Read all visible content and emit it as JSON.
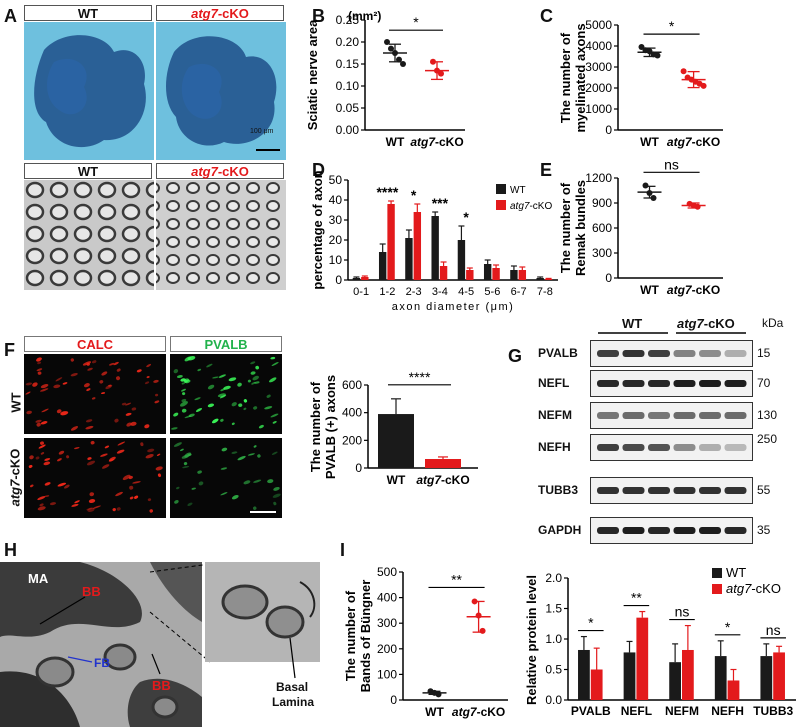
{
  "panels": {
    "A": "A",
    "B": "B",
    "C": "C",
    "D": "D",
    "E": "E",
    "F": "F",
    "G": "G",
    "H": "H",
    "I": "I"
  },
  "panelA": {
    "top_left": "WT",
    "top_right_italic": "atg7",
    "top_right_suffix": "-cKO",
    "bottom_left": "WT",
    "bottom_right_italic": "atg7",
    "bottom_right_suffix": "-cKO",
    "scale_bar": "100 μm"
  },
  "panelF": {
    "col1": "CALC",
    "col2": "PVALB",
    "row1": "WT",
    "row2_italic": "atg7",
    "row2_suffix": "-cKO"
  },
  "panelG": {
    "group_wt": "WT",
    "group_cko_italic": "atg7",
    "group_cko_suffix": "-cKO",
    "kda": "kDa",
    "rows": [
      {
        "protein": "PVALB",
        "mw": "15"
      },
      {
        "protein": "NEFL",
        "mw": "70"
      },
      {
        "protein": "NEFM",
        "mw": "130"
      },
      {
        "protein": "NEFH",
        "mw": "250"
      },
      {
        "protein": "TUBB3",
        "mw": "55"
      },
      {
        "protein": "GAPDH",
        "mw": "35"
      }
    ]
  },
  "panelH": {
    "ma": "MA",
    "bb1": "BB",
    "fb": "FB",
    "bb2": "BB",
    "basal_1": "Basal",
    "basal_2": "Lamina"
  },
  "colors": {
    "wt": "#1a1a1a",
    "cko": "#e31a1c",
    "green": "#22b24c"
  },
  "chart_data": [
    {
      "panel": "B",
      "type": "scatter",
      "ylabel": "Sciatic nerve area",
      "unit": "(mm²)",
      "categories": [
        "WT",
        "atg7-cKO"
      ],
      "cat_italic": [
        "",
        "atg7"
      ],
      "cat_suffix": [
        "WT",
        "-cKO"
      ],
      "yticks": [
        "0.00",
        "0.05",
        "0.10",
        "0.15",
        "0.20",
        "0.25"
      ],
      "ylim": [
        0,
        0.25
      ],
      "groups": [
        {
          "mean": 0.175,
          "sd": 0.02,
          "points": [
            0.2,
            0.185,
            0.175,
            0.16,
            0.15
          ]
        },
        {
          "mean": 0.135,
          "sd": 0.02,
          "points": [
            0.155,
            0.135,
            0.128
          ]
        }
      ],
      "significance": "*"
    },
    {
      "panel": "C",
      "type": "scatter",
      "ylabel_1": "The number of",
      "ylabel_2": "myelinated axons",
      "categories": [
        "WT",
        "atg7-cKO"
      ],
      "cat_italic": [
        "",
        "atg7"
      ],
      "cat_suffix": [
        "WT",
        "-cKO"
      ],
      "yticks": [
        "0",
        "1000",
        "2000",
        "3000",
        "4000",
        "5000"
      ],
      "ylim": [
        0,
        5000
      ],
      "groups": [
        {
          "mean": 3700,
          "sd": 200,
          "points": [
            3950,
            3800,
            3750,
            3600,
            3550
          ]
        },
        {
          "mean": 2400,
          "sd": 380,
          "points": [
            2800,
            2500,
            2400,
            2300,
            2200,
            2100
          ]
        }
      ],
      "significance": "*"
    },
    {
      "panel": "D",
      "type": "bar",
      "ylabel": "percentage of axon",
      "xlabel": "axon diameter (μm)",
      "categories": [
        "0-1",
        "1-2",
        "2-3",
        "3-4",
        "4-5",
        "5-6",
        "6-7",
        "7-8"
      ],
      "yticks": [
        "0",
        "10",
        "20",
        "30",
        "40",
        "50"
      ],
      "ylim": [
        0,
        50
      ],
      "legend": [
        {
          "text": "WT"
        },
        {
          "italic": "atg7",
          "suffix": "-cKO"
        }
      ],
      "series": [
        {
          "values": [
            1,
            14,
            21,
            32,
            20,
            8,
            5,
            1
          ],
          "errors": [
            0.5,
            4,
            4,
            2,
            7,
            2,
            2,
            0.5
          ]
        },
        {
          "values": [
            1.5,
            38,
            34,
            7,
            5,
            6,
            5,
            0.5
          ],
          "errors": [
            0.5,
            1.5,
            4,
            2,
            1,
            1.5,
            1.5,
            0.3
          ]
        }
      ],
      "significance": [
        "",
        "****",
        "*",
        "***",
        "*",
        "",
        "",
        ""
      ]
    },
    {
      "panel": "E",
      "type": "scatter",
      "ylabel_1": "The number of",
      "ylabel_2": "Remak bundles",
      "categories": [
        "WT",
        "atg7-cKO"
      ],
      "cat_italic": [
        "",
        "atg7"
      ],
      "cat_suffix": [
        "WT",
        "-cKO"
      ],
      "yticks": [
        "0",
        "300",
        "600",
        "900",
        "1200"
      ],
      "ylim": [
        0,
        1200
      ],
      "groups": [
        {
          "mean": 1030,
          "sd": 70,
          "points": [
            1110,
            1020,
            960
          ]
        },
        {
          "mean": 870,
          "sd": 30,
          "points": [
            890,
            870,
            855
          ]
        }
      ],
      "significance": "ns"
    },
    {
      "panel": "F",
      "type": "bar",
      "ylabel_1": "The number of",
      "ylabel_2": "PVALB (+) axons",
      "categories": [
        "WT",
        "atg7-cKO"
      ],
      "cat_italic": [
        "",
        "atg7"
      ],
      "cat_suffix": [
        "WT",
        "-cKO"
      ],
      "yticks": [
        "0",
        "200",
        "400",
        "600"
      ],
      "ylim": [
        0,
        600
      ],
      "values": [
        390,
        65
      ],
      "errors": [
        110,
        15
      ],
      "significance": "****"
    },
    {
      "panel": "I-left",
      "type": "scatter",
      "ylabel_1": "The number of",
      "ylabel_2": "Bands of Büngner",
      "categories": [
        "WT",
        "atg7-cKO"
      ],
      "cat_italic": [
        "",
        "atg7"
      ],
      "cat_suffix": [
        "WT",
        "-cKO"
      ],
      "yticks": [
        "0",
        "100",
        "200",
        "300",
        "400",
        "500"
      ],
      "ylim": [
        0,
        500
      ],
      "groups": [
        {
          "mean": 28,
          "sd": 6,
          "points": [
            34,
            28,
            22
          ]
        },
        {
          "mean": 325,
          "sd": 60,
          "points": [
            385,
            330,
            270
          ]
        }
      ],
      "significance": "**"
    },
    {
      "panel": "I-right",
      "type": "bar",
      "ylabel": "Relative protein level",
      "categories": [
        "PVALB",
        "NEFL",
        "NEFM",
        "NEFH",
        "TUBB3"
      ],
      "yticks": [
        "0.0",
        "0.5",
        "1.0",
        "1.5",
        "2.0"
      ],
      "ylim": [
        0,
        2.0
      ],
      "legend": [
        {
          "text": "WT"
        },
        {
          "italic": "atg7",
          "suffix": "-cKO"
        }
      ],
      "series": [
        {
          "values": [
            0.82,
            0.78,
            0.62,
            0.72,
            0.72
          ],
          "errors": [
            0.22,
            0.18,
            0.3,
            0.25,
            0.2
          ]
        },
        {
          "values": [
            0.5,
            1.35,
            0.82,
            0.32,
            0.78
          ],
          "errors": [
            0.35,
            0.1,
            0.4,
            0.18,
            0.1
          ]
        }
      ],
      "significance": [
        "*",
        "**",
        "ns",
        "*",
        "ns"
      ]
    }
  ]
}
